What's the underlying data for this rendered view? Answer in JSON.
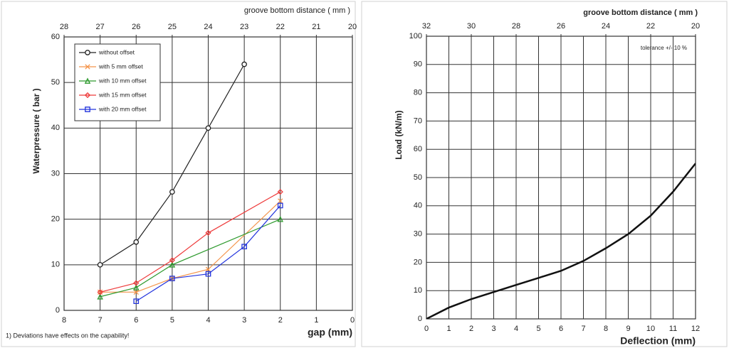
{
  "chart_data": [
    {
      "type": "line",
      "title": "groove bottom distance ( mm )",
      "x_label": "gap (mm)",
      "y_label": "Waterpressure ( bar )",
      "footnote": "1) Deviations have effects on the capability!",
      "xlim": [
        8,
        0
      ],
      "xticks": [
        8,
        7,
        6,
        5,
        4,
        3,
        2,
        1,
        0
      ],
      "x2lim": [
        28,
        20
      ],
      "x2ticks": [
        28,
        27,
        26,
        25,
        24,
        23,
        22,
        21,
        20
      ],
      "ylim": [
        0,
        60
      ],
      "yticks": [
        0,
        10,
        20,
        30,
        40,
        50,
        60
      ],
      "grid": true,
      "legend": "upper left",
      "series": [
        {
          "name": "without offset",
          "color": "#222222",
          "marker": "o",
          "x": [
            7,
            6,
            5,
            4,
            3
          ],
          "values": [
            10,
            15,
            26,
            40,
            54
          ]
        },
        {
          "name": "with 5 mm offset",
          "color": "#f4944a",
          "marker": "x",
          "x": [
            7,
            6,
            5,
            4,
            2
          ],
          "values": [
            4,
            4,
            7,
            9,
            24
          ]
        },
        {
          "name": "with 10 mm offset",
          "color": "#2e9a2e",
          "marker": "^",
          "x": [
            7,
            6,
            5,
            2
          ],
          "values": [
            3,
            5,
            10,
            20
          ]
        },
        {
          "name": "with 15 mm offset",
          "color": "#ee3b3b",
          "marker": "D",
          "x": [
            7,
            6,
            5,
            4,
            2
          ],
          "values": [
            4,
            6,
            11,
            17,
            26
          ]
        },
        {
          "name": "with 20 mm offset",
          "color": "#2233dd",
          "marker": "s",
          "x": [
            6,
            5,
            4,
            3,
            2
          ],
          "values": [
            2,
            7,
            8,
            14,
            23
          ]
        }
      ]
    },
    {
      "type": "line",
      "title": "groove bottom distance ( mm )",
      "x_label": "Deflection (mm)",
      "y_label": "Load (kN/m)",
      "annotation": "tolerance +/- 10 %",
      "xlim": [
        0,
        12
      ],
      "xticks": [
        0,
        1,
        2,
        3,
        4,
        5,
        6,
        7,
        8,
        9,
        10,
        11,
        12
      ],
      "x2lim": [
        32,
        20
      ],
      "x2ticks": [
        32,
        30,
        28,
        26,
        24,
        22,
        20
      ],
      "ylim": [
        0,
        100
      ],
      "yticks": [
        0,
        10,
        20,
        30,
        40,
        50,
        60,
        70,
        80,
        90,
        100
      ],
      "grid": true,
      "series": [
        {
          "color": "#111111",
          "x": [
            0,
            1,
            2,
            3,
            4,
            5,
            6,
            7,
            8,
            9,
            10,
            11,
            12
          ],
          "values": [
            0,
            4,
            7,
            9.5,
            12,
            14.5,
            17,
            20.5,
            25,
            30,
            36.5,
            45,
            55
          ]
        }
      ]
    }
  ]
}
